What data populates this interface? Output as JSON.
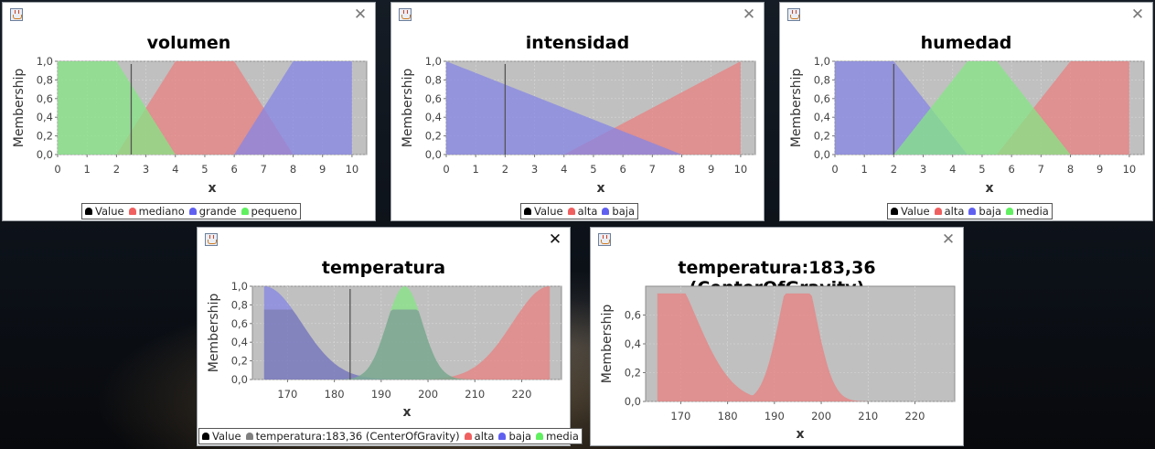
{
  "desktop": {},
  "colors": {
    "plot_bg": "#c0c0c0",
    "grid": "#d8d8d8",
    "red": "#e98080",
    "blue": "#8585e6",
    "green": "#85e685",
    "value_line": "#555555",
    "value_swatch": "#000000",
    "gray_swatch": "#808080"
  },
  "windows": [
    {
      "id": "volumen",
      "title": "volumen",
      "close_icon": "close-icon",
      "legend": [
        {
          "label": "Value",
          "color": "#000000"
        },
        {
          "label": "mediano",
          "color": "#f06060"
        },
        {
          "label": "grande",
          "color": "#6060f0"
        },
        {
          "label": "pequeno",
          "color": "#60f060"
        }
      ],
      "chart_data": {
        "type": "area",
        "xlabel": "x",
        "ylabel": "Membership",
        "xlim": [
          0,
          10.5
        ],
        "ylim": [
          0,
          1.0
        ],
        "xticks": [
          "0",
          "1",
          "2",
          "3",
          "4",
          "5",
          "6",
          "7",
          "8",
          "9",
          "10"
        ],
        "yticks": [
          "0,0",
          "0,2",
          "0,4",
          "0,6",
          "0,8",
          "1,0"
        ],
        "value": 2.5,
        "series": [
          {
            "name": "mediano",
            "color": "red",
            "points": [
              [
                2,
                0
              ],
              [
                4,
                1
              ],
              [
                6,
                1
              ],
              [
                8,
                0
              ]
            ]
          },
          {
            "name": "grande",
            "color": "blue",
            "points": [
              [
                6,
                0
              ],
              [
                8,
                1
              ],
              [
                10,
                1
              ],
              [
                10,
                0
              ]
            ]
          },
          {
            "name": "pequeno",
            "color": "green",
            "points": [
              [
                0,
                0
              ],
              [
                0,
                1
              ],
              [
                2,
                1
              ],
              [
                4,
                0
              ]
            ]
          }
        ]
      }
    },
    {
      "id": "intensidad",
      "title": "intensidad",
      "close_icon": "close-icon",
      "legend": [
        {
          "label": "Value",
          "color": "#000000"
        },
        {
          "label": "alta",
          "color": "#f06060"
        },
        {
          "label": "baja",
          "color": "#6060f0"
        }
      ],
      "chart_data": {
        "type": "area",
        "xlabel": "x",
        "ylabel": "Membership",
        "xlim": [
          0,
          10.5
        ],
        "ylim": [
          0,
          1.0
        ],
        "xticks": [
          "0",
          "1",
          "2",
          "3",
          "4",
          "5",
          "6",
          "7",
          "8",
          "9",
          "10"
        ],
        "yticks": [
          "0,0",
          "0,2",
          "0,4",
          "0,6",
          "0,8",
          "1,0"
        ],
        "value": 2.0,
        "series": [
          {
            "name": "alta",
            "color": "red",
            "points": [
              [
                4,
                0
              ],
              [
                10,
                1
              ],
              [
                10,
                0
              ]
            ]
          },
          {
            "name": "baja",
            "color": "blue",
            "points": [
              [
                0,
                0
              ],
              [
                0,
                1
              ],
              [
                8,
                0
              ]
            ]
          }
        ]
      }
    },
    {
      "id": "humedad",
      "title": "humedad",
      "close_icon": "close-icon",
      "legend": [
        {
          "label": "Value",
          "color": "#000000"
        },
        {
          "label": "alta",
          "color": "#f06060"
        },
        {
          "label": "baja",
          "color": "#6060f0"
        },
        {
          "label": "media",
          "color": "#60f060"
        }
      ],
      "chart_data": {
        "type": "area",
        "xlabel": "x",
        "ylabel": "Membership",
        "xlim": [
          0,
          10.5
        ],
        "ylim": [
          0,
          1.0
        ],
        "xticks": [
          "0",
          "1",
          "2",
          "3",
          "4",
          "5",
          "6",
          "7",
          "8",
          "9",
          "10"
        ],
        "yticks": [
          "0,0",
          "0,2",
          "0,4",
          "0,6",
          "0,8",
          "1,0"
        ],
        "value": 2.0,
        "series": [
          {
            "name": "alta",
            "color": "red",
            "points": [
              [
                5.5,
                0
              ],
              [
                8,
                1
              ],
              [
                10,
                1
              ],
              [
                10,
                0
              ]
            ]
          },
          {
            "name": "baja",
            "color": "blue",
            "points": [
              [
                0,
                0
              ],
              [
                0,
                1
              ],
              [
                2,
                1
              ],
              [
                4.5,
                0
              ]
            ]
          },
          {
            "name": "media",
            "color": "green",
            "points": [
              [
                2,
                0
              ],
              [
                4.5,
                1
              ],
              [
                5.5,
                1
              ],
              [
                8,
                0
              ]
            ]
          }
        ]
      }
    },
    {
      "id": "temperatura",
      "title": "temperatura",
      "close_icon": "close-icon",
      "legend": [
        {
          "label": "Value",
          "color": "#000000"
        },
        {
          "label": "temperatura:183,36 (CenterOfGravity)",
          "color": "#808080"
        },
        {
          "label": "alta",
          "color": "#f06060"
        },
        {
          "label": "baja",
          "color": "#6060f0"
        },
        {
          "label": "media",
          "color": "#60f060"
        }
      ],
      "chart_data": {
        "type": "area",
        "xlabel": "x",
        "ylabel": "Membership",
        "xlim": [
          162.5,
          228.5
        ],
        "ylim": [
          0,
          1.0
        ],
        "xticks": [
          "170",
          "180",
          "190",
          "200",
          "210",
          "220"
        ],
        "xtick_values": [
          170,
          180,
          190,
          200,
          210,
          220
        ],
        "yticks": [
          "0,0",
          "0,2",
          "0,4",
          "0,6",
          "0,8",
          "1,0"
        ],
        "value": 183.36,
        "series": [
          {
            "name": "alta",
            "color": "red",
            "gauss": {
              "mean": 226,
              "sigma": 8,
              "from": 190,
              "to": 226
            }
          },
          {
            "name": "baja",
            "color": "blue",
            "gauss": {
              "mean": 165,
              "sigma": 8,
              "from": 165,
              "to": 200
            }
          },
          {
            "name": "media",
            "color": "green",
            "gauss": {
              "mean": 195,
              "sigma": 3.8,
              "from": 180,
              "to": 210
            }
          },
          {
            "name": "temperatura:183,36 (CenterOfGravity)",
            "color": "gray",
            "clipped": 0.75
          }
        ]
      }
    },
    {
      "id": "result",
      "title": "temperatura:183,36 (CenterOfGravity)",
      "close_icon": "close-icon",
      "chart_data": {
        "type": "area",
        "xlabel": "x",
        "ylabel": "Membership",
        "xlim": [
          162.5,
          228.5
        ],
        "ylim": [
          0,
          0.8
        ],
        "xticks": [
          "170",
          "180",
          "190",
          "200",
          "210",
          "220"
        ],
        "xtick_values": [
          170,
          180,
          190,
          200,
          210,
          220
        ],
        "yticks": [
          "0,0",
          "0,2",
          "0,4",
          "0,6"
        ],
        "ytick_values": [
          0,
          0.2,
          0.4,
          0.6
        ],
        "series": [
          {
            "name": "temperatura:183,36 (CenterOfGravity)",
            "color": "red",
            "aggregated": 0.75
          }
        ]
      }
    }
  ]
}
